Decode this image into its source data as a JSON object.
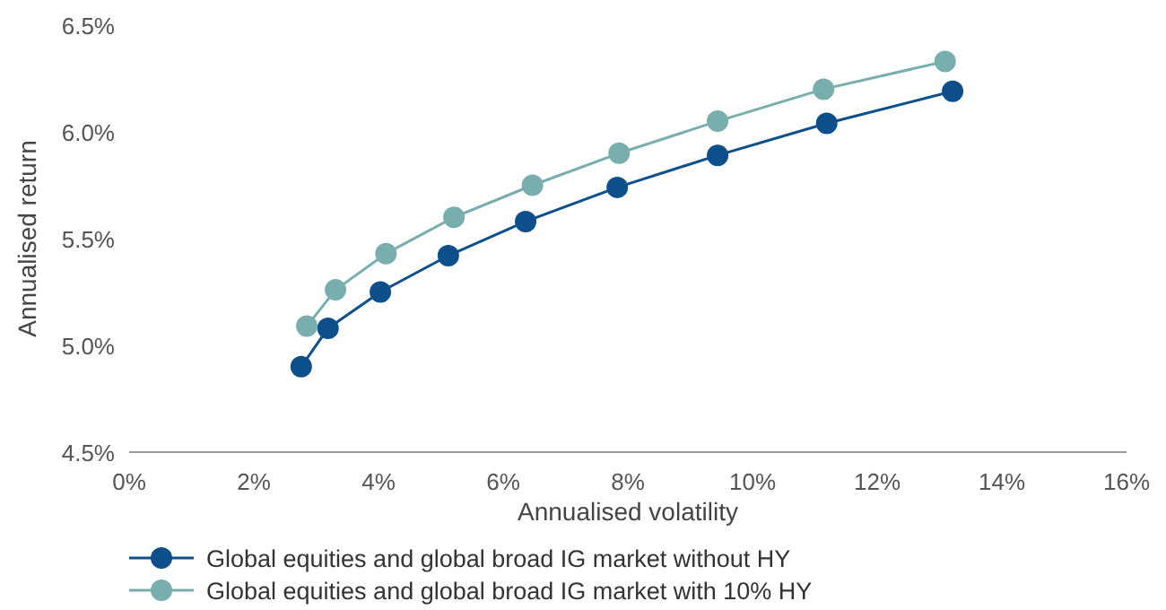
{
  "chart_data": {
    "type": "line",
    "xlabel": "Annualised volatility",
    "ylabel": "Annualised return",
    "xlim": [
      0,
      16
    ],
    "xticks": [
      {
        "value": 0,
        "label": "0%"
      },
      {
        "value": 2,
        "label": "2%"
      },
      {
        "value": 4,
        "label": "4%"
      },
      {
        "value": 6,
        "label": "6%"
      },
      {
        "value": 8,
        "label": "8%"
      },
      {
        "value": 10,
        "label": "10%"
      },
      {
        "value": 12,
        "label": "12%"
      },
      {
        "value": 14,
        "label": "14%"
      },
      {
        "value": 16,
        "label": "16%"
      }
    ],
    "ylim": [
      4.5,
      6.5
    ],
    "yticks": [
      {
        "value": 4.5,
        "label": "4.5%"
      },
      {
        "value": 5,
        "label": "5.0%"
      },
      {
        "value": 5.5,
        "label": "5.5%"
      },
      {
        "value": 6,
        "label": "6.0%"
      },
      {
        "value": 6.5,
        "label": "6.5%"
      }
    ],
    "grid": false,
    "legend": "bottom",
    "marker": "circle",
    "line_style": "solid",
    "series": [
      {
        "name": "Global equities and global broad IG market without HY",
        "color": "#0d4f8b",
        "x": [
          2.76,
          3.19,
          4.03,
          5.12,
          6.36,
          7.83,
          9.44,
          11.19,
          13.21
        ],
        "values": [
          4.9,
          5.08,
          5.25,
          5.42,
          5.58,
          5.74,
          5.89,
          6.04,
          6.19
        ]
      },
      {
        "name": "Global equities and global broad IG market with 10% HY",
        "color": "#79aeae",
        "x": [
          2.85,
          3.31,
          4.12,
          5.21,
          6.47,
          7.86,
          9.44,
          11.14,
          13.09
        ],
        "values": [
          5.09,
          5.26,
          5.43,
          5.6,
          5.75,
          5.9,
          6.05,
          6.2,
          6.33
        ]
      }
    ]
  }
}
